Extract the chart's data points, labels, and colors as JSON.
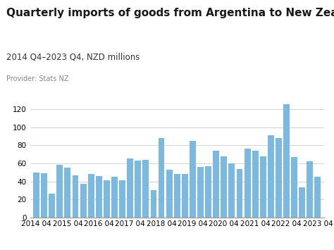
{
  "title": "Quarterly imports of goods from Argentina to New Zealand",
  "subtitle": "2014 Q4–2023 Q4, NZD millions",
  "provider": "Provider: Stats NZ",
  "bar_color": "#7cb9e0",
  "background_color": "#ffffff",
  "logo_color": "#5558af",
  "ylim": [
    0,
    130
  ],
  "yticks": [
    0,
    20,
    40,
    60,
    80,
    100,
    120
  ],
  "values": [
    50,
    49,
    26,
    58,
    55,
    47,
    37,
    48,
    46,
    41,
    45,
    41,
    65,
    63,
    64,
    30,
    88,
    53,
    48,
    48,
    85,
    56,
    57,
    74,
    68,
    60,
    54,
    76,
    74,
    68,
    91,
    88,
    125,
    67,
    33,
    62,
    45
  ],
  "xtick_positions": [
    0,
    4,
    8,
    12,
    16,
    20,
    24,
    28,
    32,
    36
  ],
  "xtick_labels": [
    "2014 04",
    "2015 04",
    "2016 04",
    "2017 04",
    "2018 04",
    "2019 04",
    "2020 04",
    "2021 04",
    "2022 04",
    "2023 04"
  ],
  "title_fontsize": 11,
  "subtitle_fontsize": 8.5,
  "provider_fontsize": 7,
  "tick_fontsize": 7.5,
  "grid_color": "#cccccc",
  "logo_fontsize": 9
}
